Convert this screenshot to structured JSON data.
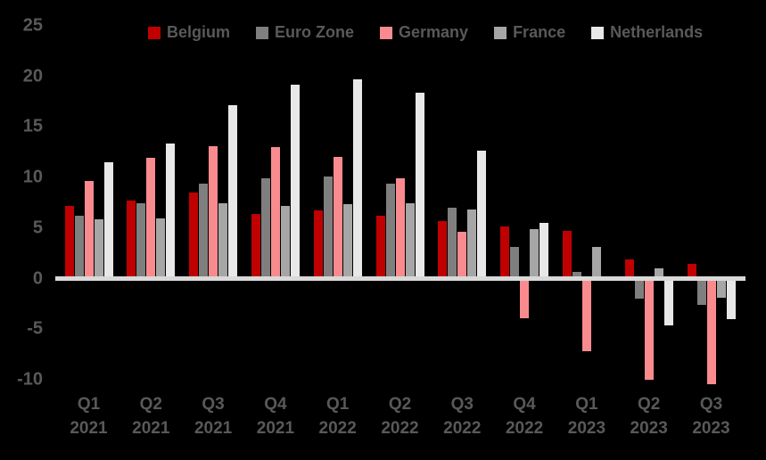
{
  "chart_data": {
    "type": "bar",
    "title": "",
    "xlabel": "",
    "ylabel": "",
    "background_color": "#000000",
    "text_color": "#595959",
    "axis_line_color": "#D9D9D9",
    "grid": false,
    "legend_position": "top",
    "ylim": [
      -11.5,
      26
    ],
    "yticks": [
      25,
      20,
      15,
      10,
      5,
      0,
      -5,
      -10
    ],
    "categories": [
      {
        "q": "Q1",
        "y": "2021"
      },
      {
        "q": "Q2",
        "y": "2021"
      },
      {
        "q": "Q3",
        "y": "2021"
      },
      {
        "q": "Q4",
        "y": "2021"
      },
      {
        "q": "Q1",
        "y": "2022"
      },
      {
        "q": "Q2",
        "y": "2022"
      },
      {
        "q": "Q3",
        "y": "2022"
      },
      {
        "q": "Q4",
        "y": "2022"
      },
      {
        "q": "Q1",
        "y": "2023"
      },
      {
        "q": "Q2",
        "y": "2023"
      },
      {
        "q": "Q3",
        "y": "2023"
      }
    ],
    "series": [
      {
        "name": "Belgium",
        "color": "#C00000",
        "values": [
          7.0,
          7.5,
          8.3,
          6.2,
          6.5,
          6.0,
          5.5,
          4.9,
          4.5,
          1.7,
          1.2
        ]
      },
      {
        "name": "Euro Zone",
        "color": "#7F7F7F",
        "values": [
          6.0,
          7.2,
          9.2,
          9.7,
          9.9,
          9.2,
          6.8,
          2.9,
          0.4,
          -1.8,
          -2.4
        ]
      },
      {
        "name": "Germany",
        "color": "#F98B8F",
        "values": [
          9.4,
          11.7,
          12.9,
          12.8,
          11.8,
          9.7,
          4.4,
          -3.7,
          -7.0,
          -9.8,
          -10.2
        ]
      },
      {
        "name": "France",
        "color": "#A6A6A6",
        "values": [
          5.6,
          5.7,
          7.2,
          7.0,
          7.1,
          7.2,
          6.6,
          4.7,
          2.9,
          0.8,
          -1.7
        ]
      },
      {
        "name": "Netherlands",
        "color": "#E9E8E8",
        "values": [
          11.3,
          13.1,
          16.9,
          19.0,
          19.5,
          18.2,
          12.4,
          5.3,
          0.0,
          -4.4,
          -3.8
        ]
      }
    ]
  }
}
